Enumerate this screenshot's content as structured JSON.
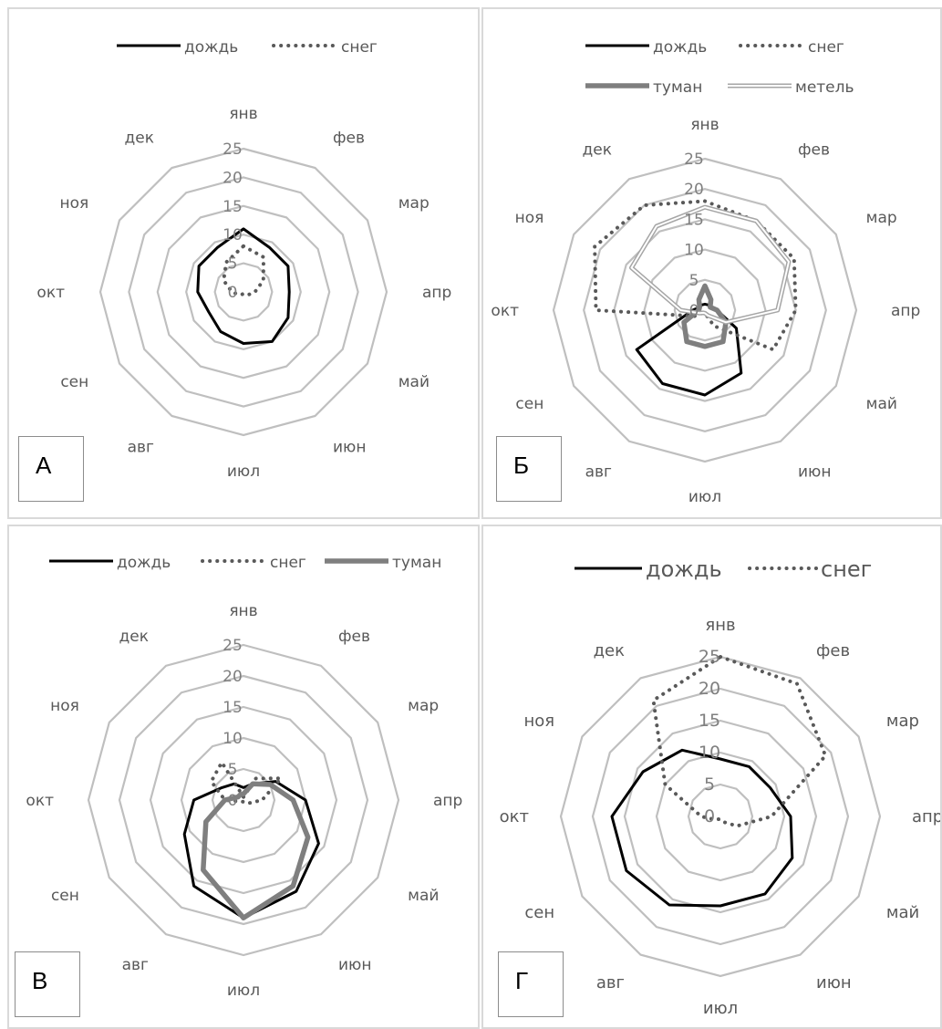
{
  "chart_data": [
    {
      "type": "radar",
      "panel_label": "А",
      "categories": [
        "янв",
        "фев",
        "мар",
        "апр",
        "май",
        "июн",
        "июл",
        "авг",
        "сен",
        "окт",
        "ноя",
        "дек"
      ],
      "rmax": 25,
      "ticks": [
        "0",
        "5",
        "10",
        "15",
        "20",
        "25"
      ],
      "series": [
        {
          "name": "дождь",
          "style": "solid-black",
          "values": [
            11,
            9,
            9,
            8,
            9,
            10,
            9,
            8,
            7,
            8,
            9,
            9
          ]
        },
        {
          "name": "снег",
          "style": "dotted",
          "values": [
            8,
            7,
            4,
            2,
            1,
            0.5,
            0.3,
            0.5,
            1,
            2,
            4,
            6
          ]
        }
      ]
    },
    {
      "type": "radar",
      "panel_label": "Б",
      "categories": [
        "янв",
        "фев",
        "мар",
        "апр",
        "май",
        "июн",
        "июл",
        "авг",
        "сен",
        "окт",
        "ноя",
        "дек"
      ],
      "rmax": 25,
      "ticks": [
        "0",
        "5",
        "10",
        "15",
        "20",
        "25"
      ],
      "series": [
        {
          "name": "дождь",
          "style": "solid-black",
          "values": [
            1,
            1,
            1,
            2,
            6,
            12,
            14,
            14,
            13,
            2,
            1,
            1
          ]
        },
        {
          "name": "снег",
          "style": "dotted",
          "values": [
            18,
            17,
            17,
            15,
            13,
            3,
            0.5,
            0.5,
            2,
            18,
            21,
            20
          ]
        },
        {
          "name": "туман",
          "style": "thick-gray",
          "values": [
            4,
            2,
            1,
            2,
            4,
            6,
            6,
            6,
            4,
            1,
            1,
            2
          ]
        },
        {
          "name": "метель",
          "style": "double-gray",
          "values": [
            17,
            17,
            16,
            12,
            4,
            1,
            0.5,
            0.5,
            1,
            4,
            14,
            16
          ]
        }
      ]
    },
    {
      "type": "radar",
      "panel_label": "В",
      "categories": [
        "янв",
        "фев",
        "мар",
        "апр",
        "май",
        "июн",
        "июл",
        "авг",
        "сен",
        "окт",
        "ноя",
        "дек"
      ],
      "rmax": 25,
      "ticks": [
        "0",
        "5",
        "10",
        "15",
        "20",
        "25"
      ],
      "series": [
        {
          "name": "дождь",
          "style": "solid-black",
          "values": [
            2,
            3,
            6,
            10,
            14,
            17,
            19,
            16,
            11,
            8,
            4,
            3
          ]
        },
        {
          "name": "снег",
          "style": "dotted",
          "values": [
            0.5,
            4,
            7,
            3,
            1,
            0.5,
            0.3,
            0.3,
            0.5,
            3,
            6,
            7
          ]
        },
        {
          "name": "туман",
          "style": "thick-gray",
          "values": [
            1,
            3,
            5,
            8,
            12,
            16,
            19,
            13,
            7,
            3,
            1,
            1
          ]
        }
      ]
    },
    {
      "type": "radar",
      "panel_label": "Г",
      "categories": [
        "янв",
        "фев",
        "мар",
        "апр",
        "май",
        "июн",
        "июл",
        "авг",
        "сен",
        "окт",
        "ноя",
        "дек"
      ],
      "rmax": 25,
      "ticks": [
        "0",
        "5",
        "10",
        "15",
        "20",
        "25"
      ],
      "series": [
        {
          "name": "дождь",
          "style": "solid-black",
          "values": [
            9,
            9,
            9,
            11,
            13,
            14,
            14,
            16,
            17,
            17,
            14,
            12
          ]
        },
        {
          "name": "снег",
          "style": "dotted",
          "values": [
            25,
            24,
            19,
            8,
            3,
            1,
            0.5,
            0.5,
            1,
            3,
            10,
            21
          ]
        }
      ]
    }
  ]
}
